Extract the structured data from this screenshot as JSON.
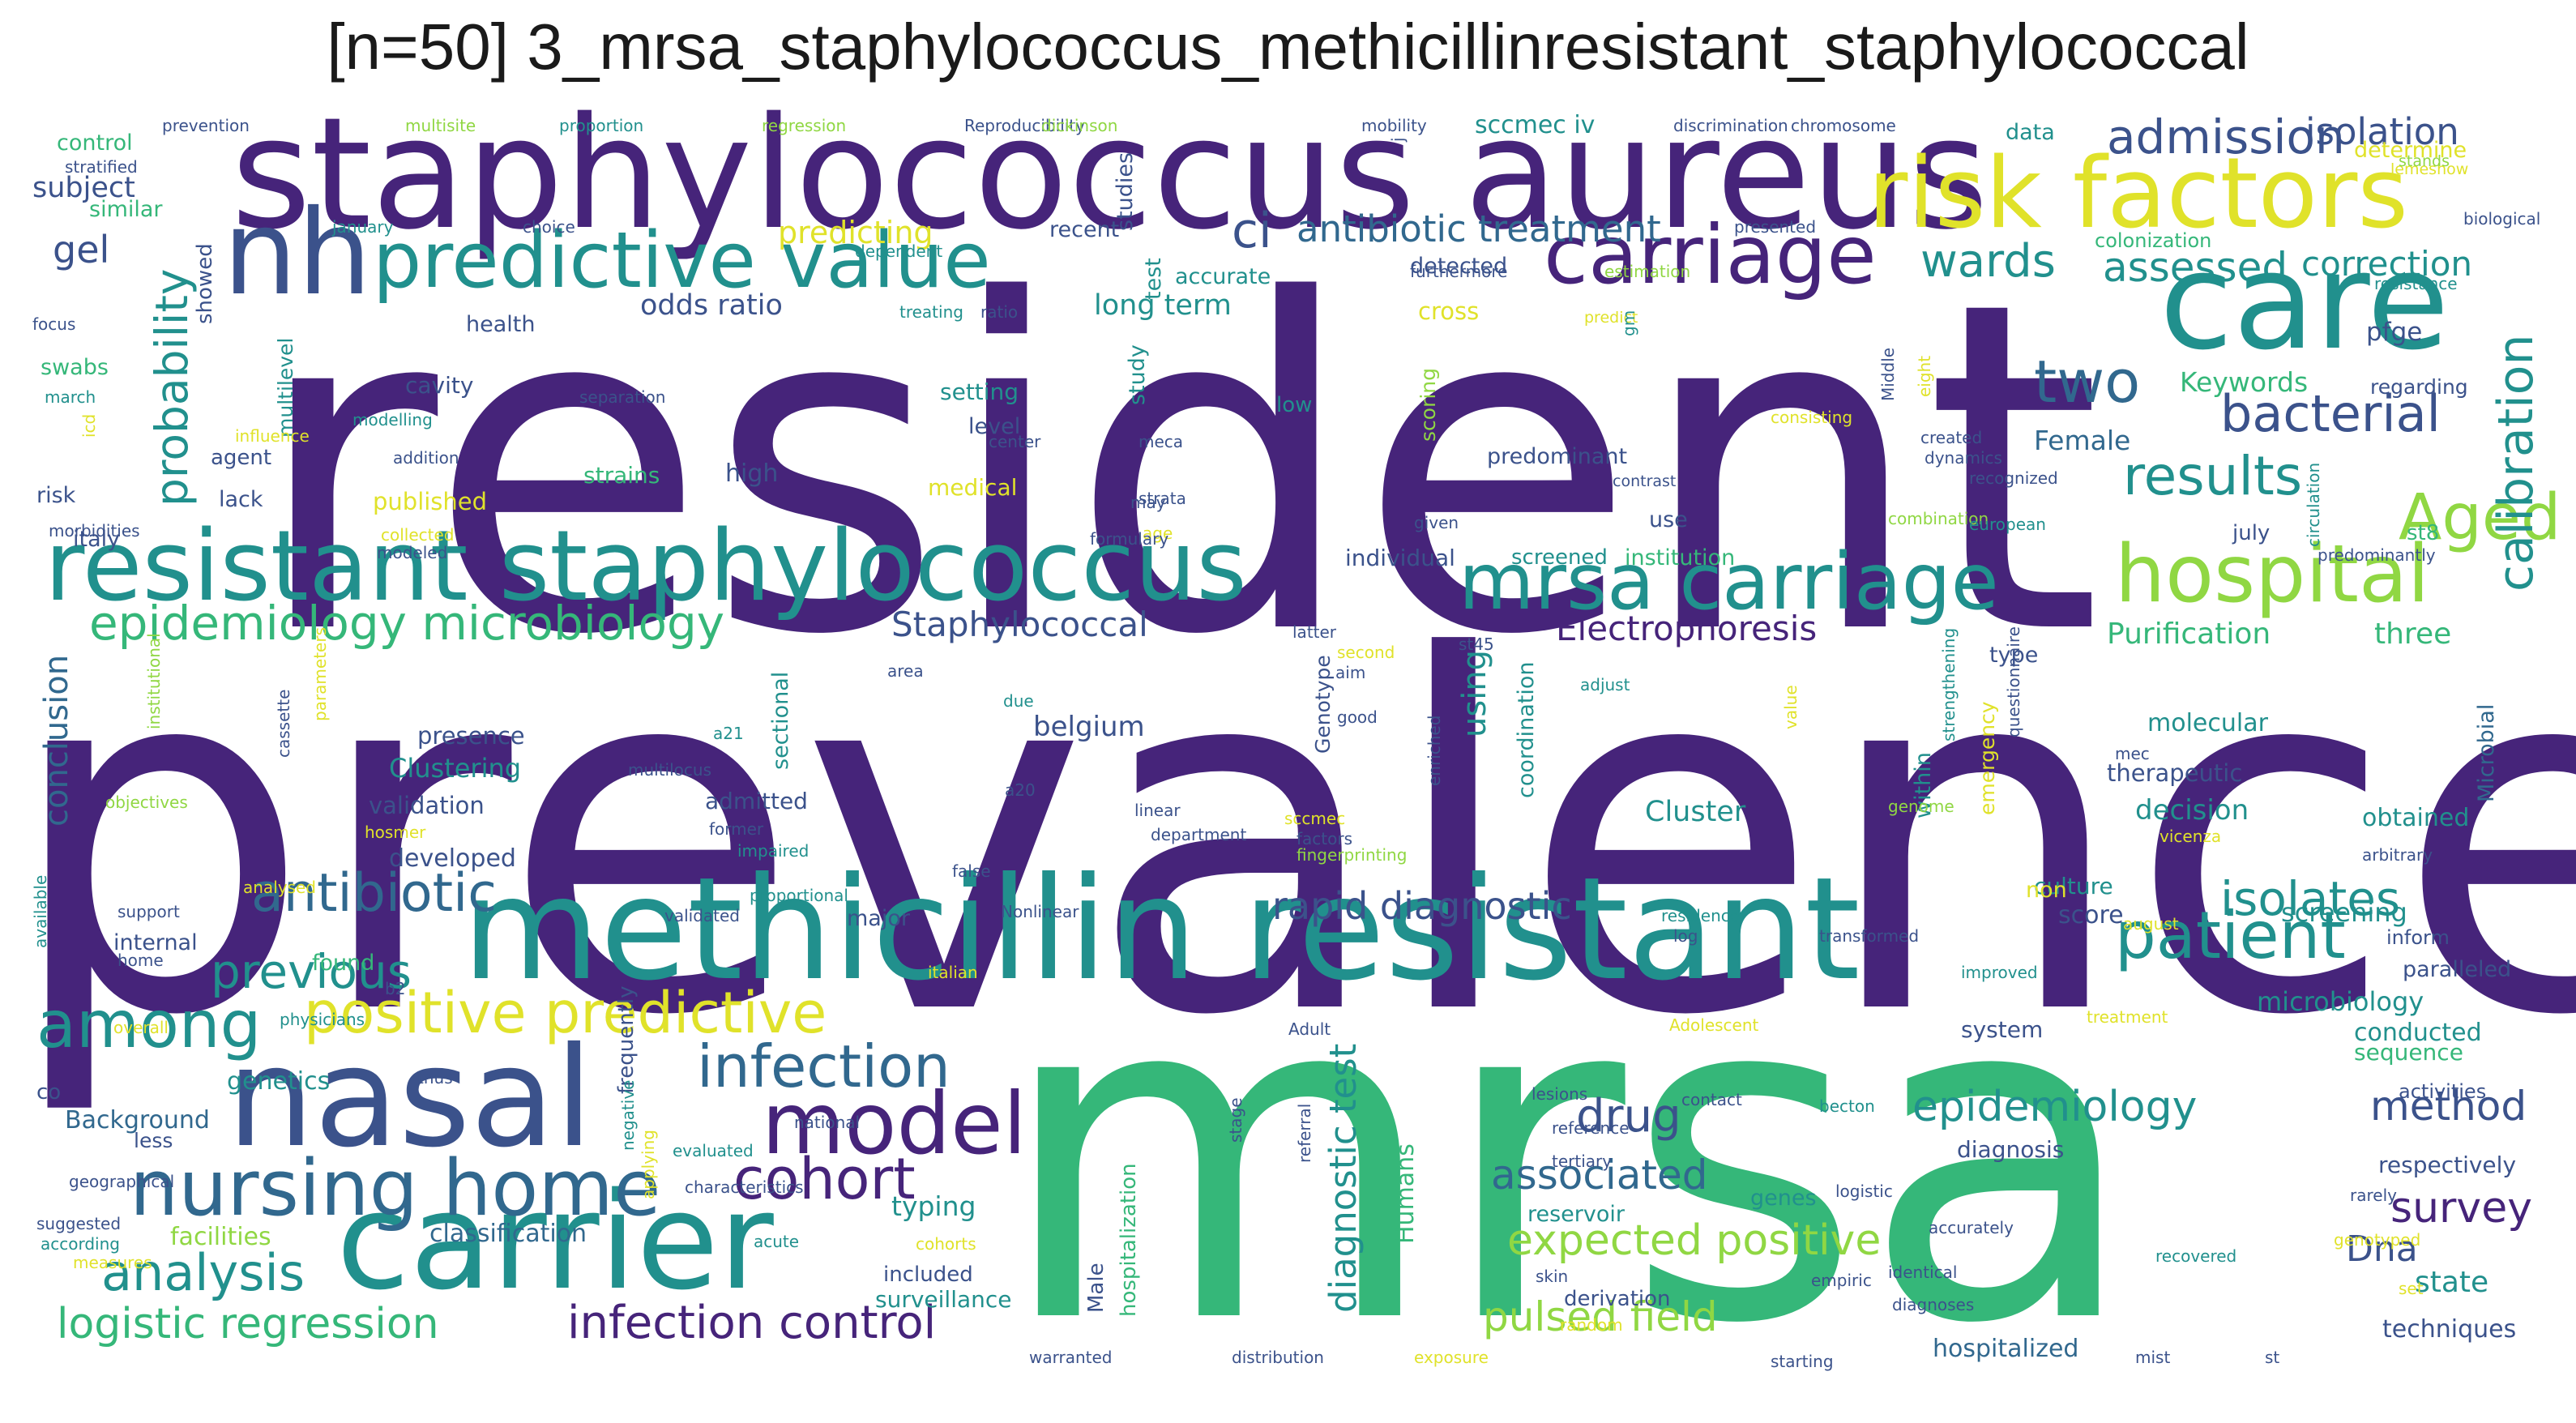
{
  "title": "[n=50] 3_mrsa_staphylococcus_methicillinresistant_staphylococcal",
  "palette": {
    "purple": "#46247a",
    "indigo": "#3b528b",
    "blue": "#31688e",
    "teal": "#21908d",
    "green": "#35b779",
    "lime": "#90d743",
    "yellow": "#e0e22a"
  },
  "words": [
    {
      "text": "resident",
      "color": "purple"
    },
    {
      "text": "prevalence",
      "color": "purple"
    },
    {
      "text": "mrsa",
      "color": "green"
    },
    {
      "text": "staphylococcus aureus",
      "color": "purple"
    },
    {
      "text": "methicillin resistant",
      "color": "teal"
    },
    {
      "text": "resistant staphylococcus",
      "color": "teal"
    },
    {
      "text": "care",
      "color": "teal"
    },
    {
      "text": "nasal",
      "color": "indigo"
    },
    {
      "text": "carrier",
      "color": "teal"
    },
    {
      "text": "nh",
      "color": "indigo"
    },
    {
      "text": "risk factors",
      "color": "yellow"
    },
    {
      "text": "carriage",
      "color": "purple"
    },
    {
      "text": "predictive value",
      "color": "teal"
    },
    {
      "text": "mrsa carriage",
      "color": "teal"
    },
    {
      "text": "hospital",
      "color": "lime"
    },
    {
      "text": "nursing home",
      "color": "blue"
    },
    {
      "text": "model",
      "color": "purple"
    },
    {
      "text": "patient",
      "color": "teal"
    },
    {
      "text": "among",
      "color": "teal"
    },
    {
      "text": "positive predictive",
      "color": "yellow"
    },
    {
      "text": "infection",
      "color": "blue"
    },
    {
      "text": "cohort",
      "color": "purple"
    },
    {
      "text": "antibiotic",
      "color": "blue"
    },
    {
      "text": "two",
      "color": "blue"
    },
    {
      "text": "Aged",
      "color": "lime"
    },
    {
      "text": "results",
      "color": "teal"
    },
    {
      "text": "bacterial",
      "color": "indigo"
    },
    {
      "text": "epidemiology microbiology",
      "color": "green"
    },
    {
      "text": "analysis",
      "color": "teal"
    },
    {
      "text": "infection control",
      "color": "purple"
    },
    {
      "text": "logistic regression",
      "color": "green"
    },
    {
      "text": "calibration",
      "color": "teal"
    },
    {
      "text": "admission",
      "color": "indigo"
    },
    {
      "text": "isolation",
      "color": "indigo"
    },
    {
      "text": "wards",
      "color": "teal"
    },
    {
      "text": "assessed",
      "color": "teal"
    },
    {
      "text": "correction",
      "color": "teal"
    },
    {
      "text": "antibiotic treatment",
      "color": "blue"
    },
    {
      "text": "ci",
      "color": "indigo"
    },
    {
      "text": "previous",
      "color": "teal"
    },
    {
      "text": "epidemiology",
      "color": "teal"
    },
    {
      "text": "drug",
      "color": "indigo"
    },
    {
      "text": "associated",
      "color": "blue"
    },
    {
      "text": "expected positive",
      "color": "lime"
    },
    {
      "text": "pulsed field",
      "color": "lime"
    },
    {
      "text": "rapid diagnostic",
      "color": "indigo"
    },
    {
      "text": "isolates",
      "color": "teal"
    },
    {
      "text": "method",
      "color": "indigo"
    },
    {
      "text": "survey",
      "color": "purple"
    },
    {
      "text": "Dna",
      "color": "indigo"
    },
    {
      "text": "Staphylococcal",
      "color": "indigo"
    },
    {
      "text": "Electrophoresis",
      "color": "purple"
    },
    {
      "text": "probability",
      "color": "teal"
    },
    {
      "text": "diagnostic test",
      "color": "teal"
    },
    {
      "text": "gel",
      "color": "indigo"
    },
    {
      "text": "odds ratio",
      "color": "indigo"
    },
    {
      "text": "long term",
      "color": "teal"
    },
    {
      "text": "sccmec iv",
      "color": "teal"
    },
    {
      "text": "predicting",
      "color": "yellow"
    },
    {
      "text": "Keywords",
      "color": "green"
    },
    {
      "text": "Female",
      "color": "blue"
    },
    {
      "text": "subject",
      "color": "indigo"
    },
    {
      "text": "pfge",
      "color": "indigo"
    },
    {
      "text": "using",
      "color": "teal"
    },
    {
      "text": "belgium",
      "color": "indigo"
    },
    {
      "text": "Clustering",
      "color": "teal"
    },
    {
      "text": "validation",
      "color": "indigo"
    },
    {
      "text": "developed",
      "color": "indigo"
    },
    {
      "text": "conclusion",
      "color": "blue"
    },
    {
      "text": "presence",
      "color": "indigo"
    },
    {
      "text": "Purification",
      "color": "green"
    },
    {
      "text": "three",
      "color": "green"
    },
    {
      "text": "Cluster",
      "color": "teal"
    },
    {
      "text": "decision",
      "color": "teal"
    },
    {
      "text": "obtained",
      "color": "teal"
    },
    {
      "text": "molecular",
      "color": "teal"
    },
    {
      "text": "therapeutic",
      "color": "indigo"
    },
    {
      "text": "microbiology",
      "color": "teal"
    },
    {
      "text": "screening",
      "color": "teal"
    },
    {
      "text": "conducted",
      "color": "teal"
    },
    {
      "text": "sequence",
      "color": "green"
    },
    {
      "text": "respectively",
      "color": "indigo"
    },
    {
      "text": "state",
      "color": "teal"
    },
    {
      "text": "techniques",
      "color": "indigo"
    },
    {
      "text": "genetics",
      "color": "teal"
    },
    {
      "text": "Background",
      "color": "blue"
    },
    {
      "text": "Humans",
      "color": "green"
    },
    {
      "text": "typing",
      "color": "teal"
    },
    {
      "text": "classification",
      "color": "blue"
    },
    {
      "text": "facilities",
      "color": "lime"
    },
    {
      "text": "surveillance",
      "color": "teal"
    },
    {
      "text": "included",
      "color": "indigo"
    },
    {
      "text": "derivation",
      "color": "indigo"
    },
    {
      "text": "hospitalized",
      "color": "blue"
    },
    {
      "text": "score",
      "color": "indigo"
    },
    {
      "text": "culture",
      "color": "teal"
    },
    {
      "text": "system",
      "color": "indigo"
    },
    {
      "text": "diagnosis",
      "color": "indigo"
    },
    {
      "text": "reservoir",
      "color": "teal"
    },
    {
      "text": "genes",
      "color": "teal"
    },
    {
      "text": "cavity",
      "color": "indigo"
    },
    {
      "text": "setting",
      "color": "teal"
    },
    {
      "text": "level",
      "color": "indigo"
    },
    {
      "text": "high",
      "color": "indigo"
    },
    {
      "text": "strains",
      "color": "green"
    },
    {
      "text": "published",
      "color": "yellow"
    },
    {
      "text": "medical",
      "color": "yellow"
    },
    {
      "text": "italy",
      "color": "indigo"
    },
    {
      "text": "agent",
      "color": "indigo"
    },
    {
      "text": "lack",
      "color": "indigo"
    },
    {
      "text": "risk",
      "color": "indigo"
    },
    {
      "text": "swabs",
      "color": "green"
    },
    {
      "text": "control",
      "color": "green"
    },
    {
      "text": "similar",
      "color": "green"
    },
    {
      "text": "health",
      "color": "indigo"
    },
    {
      "text": "accurate",
      "color": "teal"
    },
    {
      "text": "recent",
      "color": "indigo"
    },
    {
      "text": "individual",
      "color": "indigo"
    },
    {
      "text": "screened",
      "color": "teal"
    },
    {
      "text": "institution",
      "color": "green"
    },
    {
      "text": "use",
      "color": "indigo"
    },
    {
      "text": "low",
      "color": "teal"
    },
    {
      "text": "predominant",
      "color": "indigo"
    },
    {
      "text": "data",
      "color": "teal"
    },
    {
      "text": "determine",
      "color": "yellow"
    },
    {
      "text": "colonization",
      "color": "green"
    },
    {
      "text": "regarding",
      "color": "indigo"
    },
    {
      "text": "st8",
      "color": "green"
    },
    {
      "text": "july",
      "color": "indigo"
    },
    {
      "text": "admitted",
      "color": "indigo"
    },
    {
      "text": "found",
      "color": "green"
    },
    {
      "text": "major",
      "color": "indigo"
    },
    {
      "text": "internal",
      "color": "indigo"
    },
    {
      "text": "less",
      "color": "indigo"
    },
    {
      "text": "non",
      "color": "yellow"
    },
    {
      "text": "type",
      "color": "indigo"
    },
    {
      "text": "cross",
      "color": "yellow"
    },
    {
      "text": "detected",
      "color": "indigo"
    },
    {
      "text": "within",
      "color": "teal"
    },
    {
      "text": "coordination",
      "color": "teal"
    },
    {
      "text": "study",
      "color": "teal"
    },
    {
      "text": "test",
      "color": "teal"
    },
    {
      "text": "studies",
      "color": "indigo"
    },
    {
      "text": "scoring",
      "color": "lime"
    },
    {
      "text": "Genotype",
      "color": "indigo"
    },
    {
      "text": "showed",
      "color": "indigo"
    },
    {
      "text": "multilevel",
      "color": "teal"
    },
    {
      "text": "sectional",
      "color": "teal"
    },
    {
      "text": "hospitalization",
      "color": "green"
    },
    {
      "text": "Male",
      "color": "indigo"
    },
    {
      "text": "frequently",
      "color": "indigo"
    },
    {
      "text": "activities",
      "color": "indigo"
    },
    {
      "text": "paralleled",
      "color": "indigo"
    },
    {
      "text": "inform",
      "color": "indigo"
    },
    {
      "text": "Microbial",
      "color": "blue"
    },
    {
      "text": "co",
      "color": "indigo"
    },
    {
      "text": "emergency",
      "color": "yellow"
    },
    {
      "text": "prevention",
      "color": "indigo"
    },
    {
      "text": "multisite",
      "color": "lime"
    },
    {
      "text": "proportion",
      "color": "teal"
    },
    {
      "text": "regression",
      "color": "lime"
    },
    {
      "text": "Reproducibility",
      "color": "indigo"
    },
    {
      "text": "dickinson",
      "color": "lime"
    },
    {
      "text": "mobility",
      "color": "indigo"
    },
    {
      "text": "discrimination",
      "color": "indigo"
    },
    {
      "text": "chromosome",
      "color": "indigo"
    },
    {
      "text": "lemeshow",
      "color": "yellow"
    },
    {
      "text": "stands",
      "color": "lime"
    },
    {
      "text": "biological",
      "color": "indigo"
    },
    {
      "text": "resistance",
      "color": "teal"
    },
    {
      "text": "stratified",
      "color": "indigo"
    },
    {
      "text": "january",
      "color": "teal"
    },
    {
      "text": "choice",
      "color": "indigo"
    },
    {
      "text": "dependent",
      "color": "teal"
    },
    {
      "text": "presented",
      "color": "indigo"
    },
    {
      "text": "furthermore",
      "color": "indigo"
    },
    {
      "text": "estimation",
      "color": "lime"
    },
    {
      "text": "predict",
      "color": "yellow"
    },
    {
      "text": "focus",
      "color": "indigo"
    },
    {
      "text": "treating",
      "color": "teal"
    },
    {
      "text": "ratio",
      "color": "indigo"
    },
    {
      "text": "march",
      "color": "teal"
    },
    {
      "text": "separation",
      "color": "indigo"
    },
    {
      "text": "modelling",
      "color": "teal"
    },
    {
      "text": "influence",
      "color": "yellow"
    },
    {
      "text": "addition",
      "color": "indigo"
    },
    {
      "text": "center",
      "color": "indigo"
    },
    {
      "text": "meca",
      "color": "indigo"
    },
    {
      "text": "strata",
      "color": "indigo"
    },
    {
      "text": "consisting",
      "color": "yellow"
    },
    {
      "text": "dynamics",
      "color": "indigo"
    },
    {
      "text": "created",
      "color": "indigo"
    },
    {
      "text": "recognized",
      "color": "indigo"
    },
    {
      "text": "Middle",
      "color": "indigo"
    },
    {
      "text": "eight",
      "color": "yellow"
    },
    {
      "text": "contrast",
      "color": "indigo"
    },
    {
      "text": "combination",
      "color": "lime"
    },
    {
      "text": "european",
      "color": "teal"
    },
    {
      "text": "predominantly",
      "color": "indigo"
    },
    {
      "text": "circulation",
      "color": "teal"
    },
    {
      "text": "collected",
      "color": "yellow"
    },
    {
      "text": "modeled",
      "color": "indigo"
    },
    {
      "text": "morbidities",
      "color": "indigo"
    },
    {
      "text": "may",
      "color": "indigo"
    },
    {
      "text": "age",
      "color": "yellow"
    },
    {
      "text": "formulary",
      "color": "indigo"
    },
    {
      "text": "given",
      "color": "indigo"
    },
    {
      "text": "latter",
      "color": "indigo"
    },
    {
      "text": "second",
      "color": "yellow"
    },
    {
      "text": "aim",
      "color": "indigo"
    },
    {
      "text": "good",
      "color": "indigo"
    },
    {
      "text": "adjust",
      "color": "teal"
    },
    {
      "text": "st45",
      "color": "indigo"
    },
    {
      "text": "area",
      "color": "indigo"
    },
    {
      "text": "due",
      "color": "teal"
    },
    {
      "text": "a21",
      "color": "teal"
    },
    {
      "text": "a20",
      "color": "indigo"
    },
    {
      "text": "linear",
      "color": "indigo"
    },
    {
      "text": "department",
      "color": "indigo"
    },
    {
      "text": "sccmec",
      "color": "yellow"
    },
    {
      "text": "factors",
      "color": "indigo"
    },
    {
      "text": "fingerprinting",
      "color": "lime"
    },
    {
      "text": "enriched",
      "color": "indigo"
    },
    {
      "text": "value",
      "color": "yellow"
    },
    {
      "text": "strengthening",
      "color": "teal"
    },
    {
      "text": "genome",
      "color": "lime"
    },
    {
      "text": "questionnaire",
      "color": "indigo"
    },
    {
      "text": "mec",
      "color": "indigo"
    },
    {
      "text": "vicenza",
      "color": "yellow"
    },
    {
      "text": "arbitrary",
      "color": "indigo"
    },
    {
      "text": "multilocus",
      "color": "indigo"
    },
    {
      "text": "former",
      "color": "indigo"
    },
    {
      "text": "hosmer",
      "color": "yellow"
    },
    {
      "text": "impaired",
      "color": "teal"
    },
    {
      "text": "false",
      "color": "indigo"
    },
    {
      "text": "objectives",
      "color": "lime"
    },
    {
      "text": "institutional",
      "color": "lime"
    },
    {
      "text": "cassette",
      "color": "indigo"
    },
    {
      "text": "parameters",
      "color": "yellow"
    },
    {
      "text": "analysed",
      "color": "yellow"
    },
    {
      "text": "support",
      "color": "indigo"
    },
    {
      "text": "validated",
      "color": "indigo"
    },
    {
      "text": "proportional",
      "color": "teal"
    },
    {
      "text": "Nonlinear",
      "color": "indigo"
    },
    {
      "text": "residence",
      "color": "teal"
    },
    {
      "text": "log",
      "color": "indigo"
    },
    {
      "text": "transformed",
      "color": "indigo"
    },
    {
      "text": "august",
      "color": "yellow"
    },
    {
      "text": "home",
      "color": "indigo"
    },
    {
      "text": "b2",
      "color": "indigo"
    },
    {
      "text": "italian",
      "color": "yellow"
    },
    {
      "text": "Adult",
      "color": "indigo"
    },
    {
      "text": "improved",
      "color": "teal"
    },
    {
      "text": "treatment",
      "color": "yellow"
    },
    {
      "text": "Adolescent",
      "color": "yellow"
    },
    {
      "text": "overall",
      "color": "yellow"
    },
    {
      "text": "physicians",
      "color": "teal"
    },
    {
      "text": "thus",
      "color": "indigo"
    },
    {
      "text": "available",
      "color": "teal"
    },
    {
      "text": "icd",
      "color": "yellow"
    },
    {
      "text": "negative",
      "color": "teal"
    },
    {
      "text": "applying",
      "color": "yellow"
    },
    {
      "text": "lesions",
      "color": "indigo"
    },
    {
      "text": "contact",
      "color": "indigo"
    },
    {
      "text": "becton",
      "color": "teal"
    },
    {
      "text": "reference",
      "color": "indigo"
    },
    {
      "text": "tertiary",
      "color": "indigo"
    },
    {
      "text": "national",
      "color": "indigo"
    },
    {
      "text": "evaluated",
      "color": "teal"
    },
    {
      "text": "geographical",
      "color": "indigo"
    },
    {
      "text": "characteristics",
      "color": "indigo"
    },
    {
      "text": "stage",
      "color": "indigo"
    },
    {
      "text": "referral",
      "color": "indigo"
    },
    {
      "text": "suggested",
      "color": "indigo"
    },
    {
      "text": "according",
      "color": "teal"
    },
    {
      "text": "measures",
      "color": "yellow"
    },
    {
      "text": "cohorts",
      "color": "yellow"
    },
    {
      "text": "acute",
      "color": "teal"
    },
    {
      "text": "logistic",
      "color": "indigo"
    },
    {
      "text": "accurately",
      "color": "indigo"
    },
    {
      "text": "genotyped",
      "color": "yellow"
    },
    {
      "text": "rarely",
      "color": "indigo"
    },
    {
      "text": "set",
      "color": "yellow"
    },
    {
      "text": "identical",
      "color": "indigo"
    },
    {
      "text": "recovered",
      "color": "teal"
    },
    {
      "text": "skin",
      "color": "indigo"
    },
    {
      "text": "empiric",
      "color": "indigo"
    },
    {
      "text": "random",
      "color": "yellow"
    },
    {
      "text": "diagnoses",
      "color": "indigo"
    },
    {
      "text": "warranted",
      "color": "indigo"
    },
    {
      "text": "distribution",
      "color": "indigo"
    },
    {
      "text": "exposure",
      "color": "yellow"
    },
    {
      "text": "starting",
      "color": "indigo"
    },
    {
      "text": "mist",
      "color": "indigo"
    },
    {
      "text": "st",
      "color": "indigo"
    },
    {
      "text": "j",
      "color": "indigo"
    },
    {
      "text": "gm",
      "color": "teal"
    }
  ]
}
